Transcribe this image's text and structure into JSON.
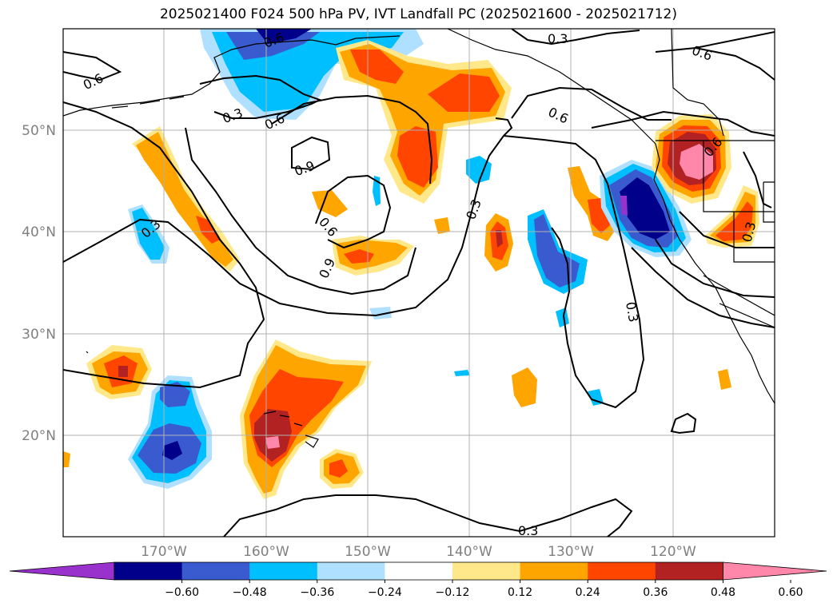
{
  "title": "2025021400 F024 500 hPa PV, IVT Landfall PC (2025021600 - 2025021712)",
  "lat_labels": [
    "50°N",
    "40°N",
    "30°N",
    "20°N"
  ],
  "lon_labels": [
    "170°W",
    "160°W",
    "150°W",
    "140°W",
    "130°W",
    "120°W"
  ],
  "colorbar": {
    "labels": [
      "−0.60",
      "−0.48",
      "−0.36",
      "−0.24",
      "−0.12",
      "0.12",
      "0.24",
      "0.36",
      "0.48",
      "0.60"
    ],
    "colors": [
      "#9932cc",
      "#00008b",
      "#3a5bd0",
      "#00bfff",
      "#b0e0ff",
      "#ffffff",
      "#ffe88a",
      "#ffa500",
      "#ff4500",
      "#b22222",
      "#ff88aa"
    ]
  },
  "contour_labels": [
    "0.6",
    "0.3",
    "0.6",
    "0.3",
    "0.6",
    "0.9",
    "0.6",
    "0.9",
    "0.3",
    "0.3",
    "0.6",
    "0.3",
    "0.6",
    "0.6",
    "0.3",
    "0.3"
  ],
  "colors": {
    "contour": "#000000",
    "grid": "#b0b0b0",
    "coast": "#000000"
  }
}
